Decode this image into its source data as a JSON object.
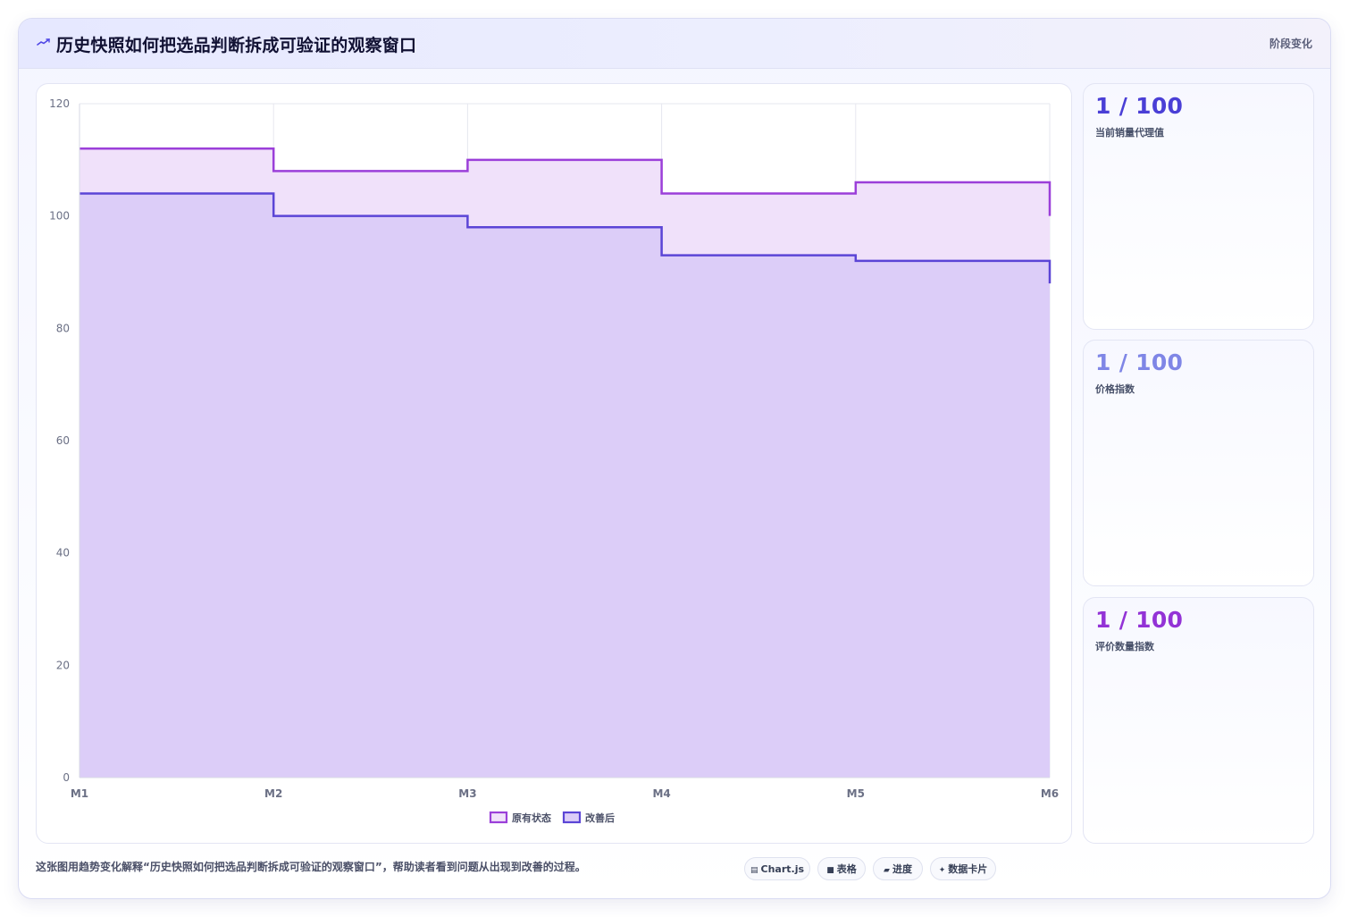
{
  "header": {
    "title": "历史快照如何把选品判断拆成可验证的观察窗口",
    "right_label": "阶段变化",
    "icon": "trend-line-icon"
  },
  "chart_data": {
    "type": "area",
    "step": true,
    "categories": [
      "M1",
      "M2",
      "M3",
      "M4",
      "M5",
      "M6"
    ],
    "series": [
      {
        "name": "原有状态",
        "values": [
          112,
          108,
          110,
          104,
          106,
          100
        ],
        "color": "#9b3fd9",
        "fill": "#f0e1fa"
      },
      {
        "name": "改善后",
        "values": [
          104,
          100,
          98,
          93,
          92,
          88
        ],
        "color": "#5b45d6",
        "fill": "#dccdf8"
      }
    ],
    "ylim": [
      0,
      120
    ],
    "yticks": [
      0,
      20,
      40,
      60,
      80,
      100,
      120
    ],
    "grid": true,
    "legend_position": "bottom"
  },
  "stats": [
    {
      "value": "1 / 100",
      "label": "当前销量代理值",
      "color": "#4a3fd6"
    },
    {
      "value": "1 / 100",
      "label": "价格指数",
      "color": "#7f86e6"
    },
    {
      "value": "1 / 100",
      "label": "评价数量指数",
      "color": "#9333d6"
    }
  ],
  "caption": "这张图用趋势变化解释“历史快照如何把选品判断拆成可验证的观察窗口”，帮助读者看到问题从出现到改善的过程。",
  "chips": [
    {
      "icon": "chart-icon",
      "glyph": "▤",
      "label": "Chart.js"
    },
    {
      "icon": "table-icon",
      "glyph": "■",
      "label": "表格"
    },
    {
      "icon": "progress-icon",
      "glyph": "▰",
      "label": "进度"
    },
    {
      "icon": "sparkle-icon",
      "glyph": "✦",
      "label": "数据卡片"
    }
  ]
}
